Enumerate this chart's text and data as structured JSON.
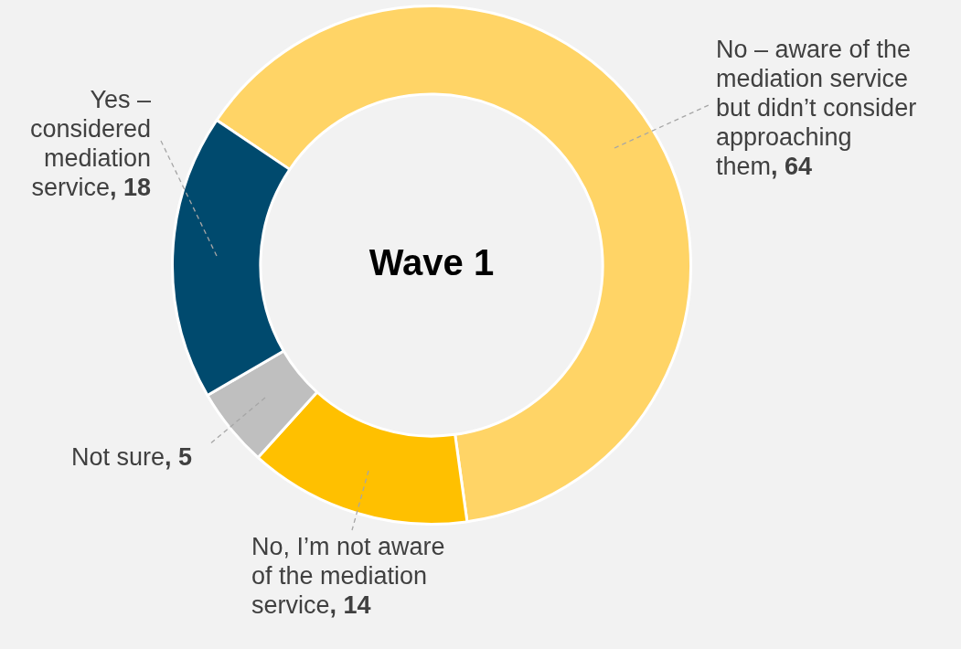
{
  "chart_data": {
    "type": "donut",
    "title": "Wave 1",
    "categories": [
      "No – aware of the mediation service but didn’t consider approaching them",
      "No, I’m not aware of the mediation service",
      "Not sure",
      "Yes – considered mediation service"
    ],
    "values": [
      64,
      14,
      5,
      18
    ],
    "colors": [
      "#ffd466",
      "#ffc000",
      "#bfbfbf",
      "#004a6e"
    ],
    "value_labels": [
      ", 64",
      ", 14",
      ", 5",
      ", 18"
    ],
    "legend": false
  }
}
